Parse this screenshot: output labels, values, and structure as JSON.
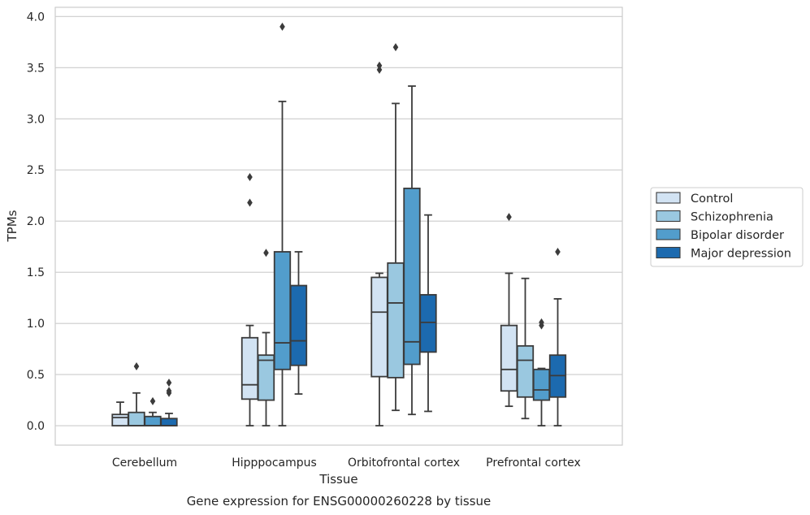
{
  "chart_data": {
    "type": "box",
    "xlabel": "Tissue",
    "ylabel": "TPMs",
    "caption": "Gene expression for ENSG00000260228 by tissue",
    "ylim": [
      -0.19,
      4.09
    ],
    "yticks": [
      "0.0",
      "0.5",
      "1.0",
      "1.5",
      "2.0",
      "2.5",
      "3.0",
      "3.5",
      "4.0"
    ],
    "grid": "horizontal",
    "legend_position": "right",
    "categories": [
      "Cerebellum",
      "Hipppocampus",
      "Orbitofrontal cortex",
      "Prefrontal cortex"
    ],
    "series": [
      {
        "name": "Control",
        "color": "#d2e3f3",
        "boxes": [
          {
            "whislo": 0.0,
            "q1": 0.0,
            "med": 0.08,
            "q3": 0.11,
            "whishi": 0.23,
            "fliers": []
          },
          {
            "whislo": 0.0,
            "q1": 0.26,
            "med": 0.4,
            "q3": 0.86,
            "whishi": 0.98,
            "fliers": [
              2.18,
              2.43
            ]
          },
          {
            "whislo": 0.0,
            "q1": 0.48,
            "med": 1.11,
            "q3": 1.45,
            "whishi": 1.49,
            "fliers": [
              3.48,
              3.52
            ]
          },
          {
            "whislo": 0.19,
            "q1": 0.34,
            "med": 0.55,
            "q3": 0.98,
            "whishi": 1.49,
            "fliers": [
              2.04
            ]
          }
        ]
      },
      {
        "name": "Schizophrenia",
        "color": "#9ac8e0",
        "boxes": [
          {
            "whislo": 0.0,
            "q1": 0.0,
            "med": 0.0,
            "q3": 0.13,
            "whishi": 0.32,
            "fliers": [
              0.58
            ]
          },
          {
            "whislo": 0.0,
            "q1": 0.25,
            "med": 0.64,
            "q3": 0.69,
            "whishi": 0.91,
            "fliers": [
              1.69
            ]
          },
          {
            "whislo": 0.15,
            "q1": 0.47,
            "med": 1.2,
            "q3": 1.59,
            "whishi": 3.15,
            "fliers": [
              3.7
            ]
          },
          {
            "whislo": 0.07,
            "q1": 0.28,
            "med": 0.64,
            "q3": 0.78,
            "whishi": 1.44,
            "fliers": []
          }
        ]
      },
      {
        "name": "Bipolar disorder",
        "color": "#529dcc",
        "boxes": [
          {
            "whislo": 0.0,
            "q1": 0.0,
            "med": 0.0,
            "q3": 0.09,
            "whishi": 0.13,
            "fliers": [
              0.24
            ]
          },
          {
            "whislo": 0.0,
            "q1": 0.55,
            "med": 0.81,
            "q3": 1.7,
            "whishi": 3.17,
            "fliers": [
              3.9
            ]
          },
          {
            "whislo": 0.11,
            "q1": 0.6,
            "med": 0.82,
            "q3": 2.32,
            "whishi": 3.32,
            "fliers": []
          },
          {
            "whislo": 0.0,
            "q1": 0.25,
            "med": 0.35,
            "q3": 0.55,
            "whishi": 0.56,
            "fliers": [
              0.98,
              1.01
            ]
          }
        ]
      },
      {
        "name": "Major depression",
        "color": "#1c6aaf",
        "boxes": [
          {
            "whislo": 0.0,
            "q1": 0.0,
            "med": 0.0,
            "q3": 0.07,
            "whishi": 0.12,
            "fliers": [
              0.32,
              0.34,
              0.42
            ]
          },
          {
            "whislo": 0.31,
            "q1": 0.59,
            "med": 0.83,
            "q3": 1.37,
            "whishi": 1.7,
            "fliers": []
          },
          {
            "whislo": 0.14,
            "q1": 0.72,
            "med": 1.01,
            "q3": 1.28,
            "whishi": 2.06,
            "fliers": []
          },
          {
            "whislo": 0.0,
            "q1": 0.28,
            "med": 0.49,
            "q3": 0.69,
            "whishi": 1.24,
            "fliers": [
              1.7
            ]
          }
        ]
      }
    ]
  }
}
